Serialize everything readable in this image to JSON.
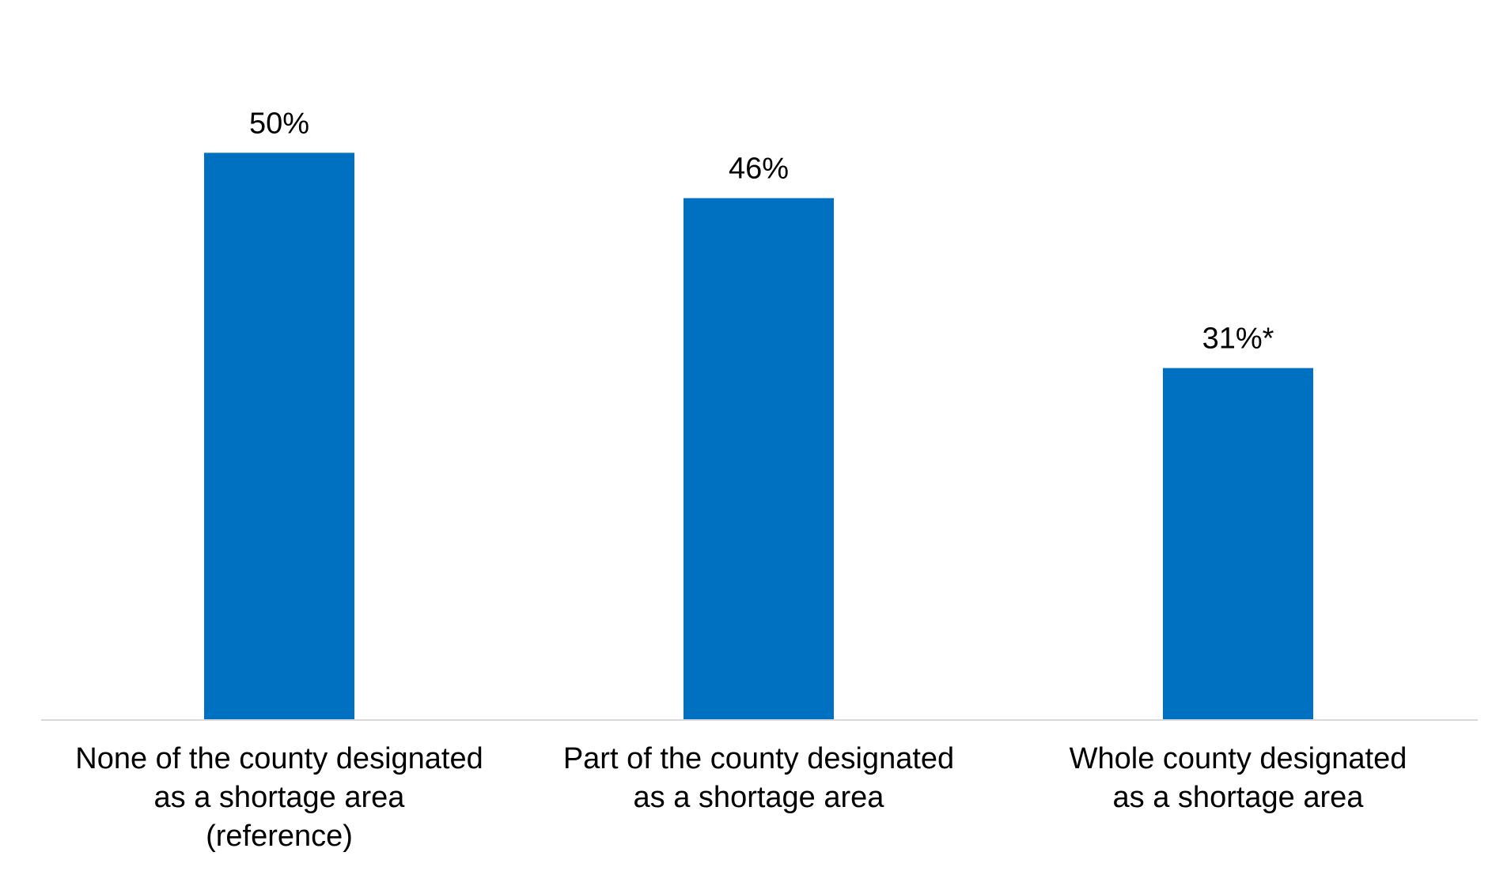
{
  "chart_data": {
    "type": "bar",
    "categories": [
      [
        "None of the county designated",
        "as a shortage area",
        "(reference)"
      ],
      [
        "Part of the county designated",
        "as a shortage area"
      ],
      [
        "Whole county designated",
        "as a shortage area"
      ]
    ],
    "values": [
      50,
      46,
      31
    ],
    "value_labels": [
      "50%",
      "46%",
      "31%*"
    ],
    "ylim": [
      0,
      60
    ],
    "grid": false,
    "legend": "none",
    "title": "",
    "xlabel": "",
    "ylabel": "",
    "colors": {
      "bar": "#0070C0",
      "axis": "#D9D9D9",
      "text": "#000000"
    }
  }
}
